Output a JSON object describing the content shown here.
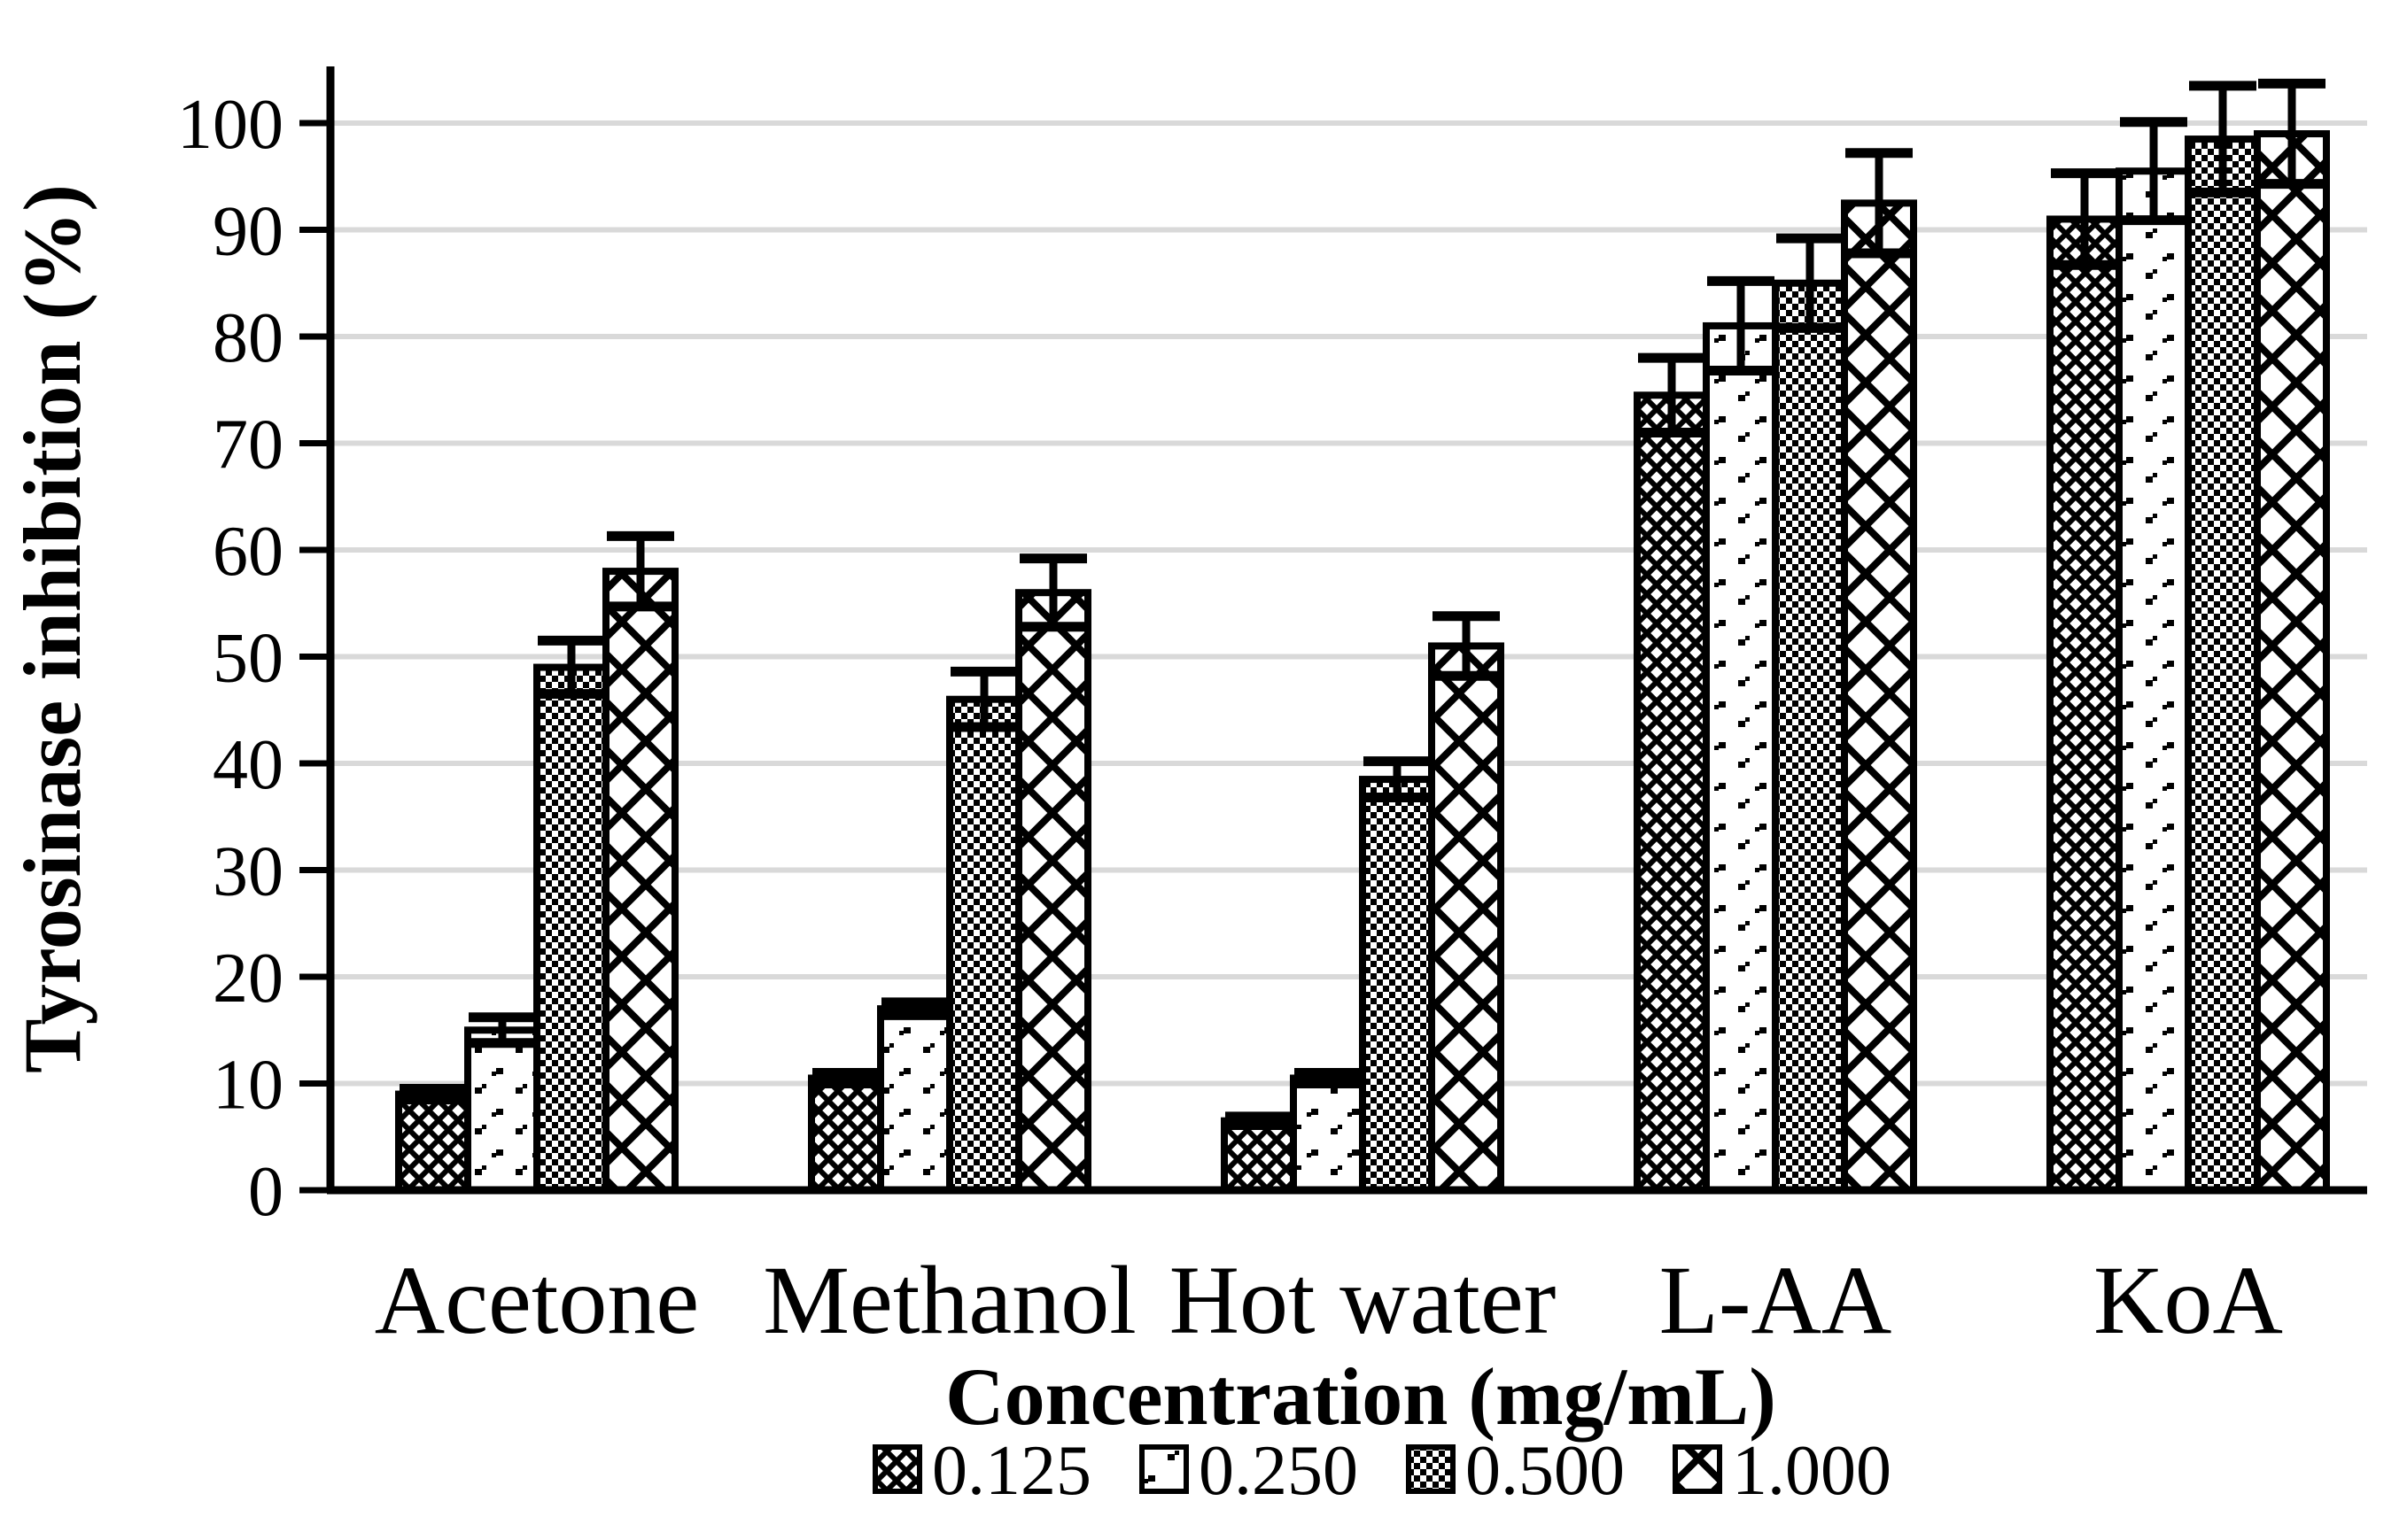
{
  "chart_data": {
    "type": "bar",
    "title": "",
    "categories": [
      "Acetone",
      "Methanol",
      "Hot water",
      "L-AA",
      "KoA"
    ],
    "series": [
      {
        "name": "0.125",
        "pattern": "fine-diagonal-crosshatch",
        "values": [
          9,
          10.5,
          6.5,
          74.5,
          91
        ],
        "errors": [
          0.5,
          0.5,
          0.4,
          3.5,
          4.3
        ]
      },
      {
        "name": "0.250",
        "pattern": "sparse-dots",
        "values": [
          15,
          17,
          10.5,
          81,
          95.5
        ],
        "errors": [
          1.2,
          0.6,
          0.5,
          4.2,
          4.6
        ]
      },
      {
        "name": "0.500",
        "pattern": "dense-checkerboard",
        "values": [
          49,
          46,
          38.5,
          85,
          98.5
        ],
        "errors": [
          2.5,
          2.6,
          1.7,
          4.2,
          5.0
        ]
      },
      {
        "name": "1.000",
        "pattern": "large-diamond-lattice",
        "values": [
          58,
          56,
          51,
          92.5,
          99
        ],
        "errors": [
          3.3,
          3.2,
          2.8,
          4.7,
          4.7
        ]
      }
    ],
    "xlabel": "Concentration (mg/mL)",
    "ylabel": "Tyrosinase inhibition (%)",
    "ylim": [
      0,
      100
    ],
    "ytick_step": 10,
    "yticks": [
      "0",
      "10",
      "20",
      "30",
      "40",
      "50",
      "60",
      "70",
      "80",
      "90",
      "100"
    ],
    "grid": true,
    "error_bars": true,
    "legend_position": "bottom",
    "legend_labels": [
      "0.125",
      "0.250",
      "0.500",
      "1.000"
    ]
  },
  "colors": {
    "bar_fill_background": "#ffffff",
    "bar_pattern_and_border": "#000000",
    "gridline": "#d9d9d9",
    "axis": "#000000",
    "text": "#000000",
    "page_background": "#ffffff"
  }
}
